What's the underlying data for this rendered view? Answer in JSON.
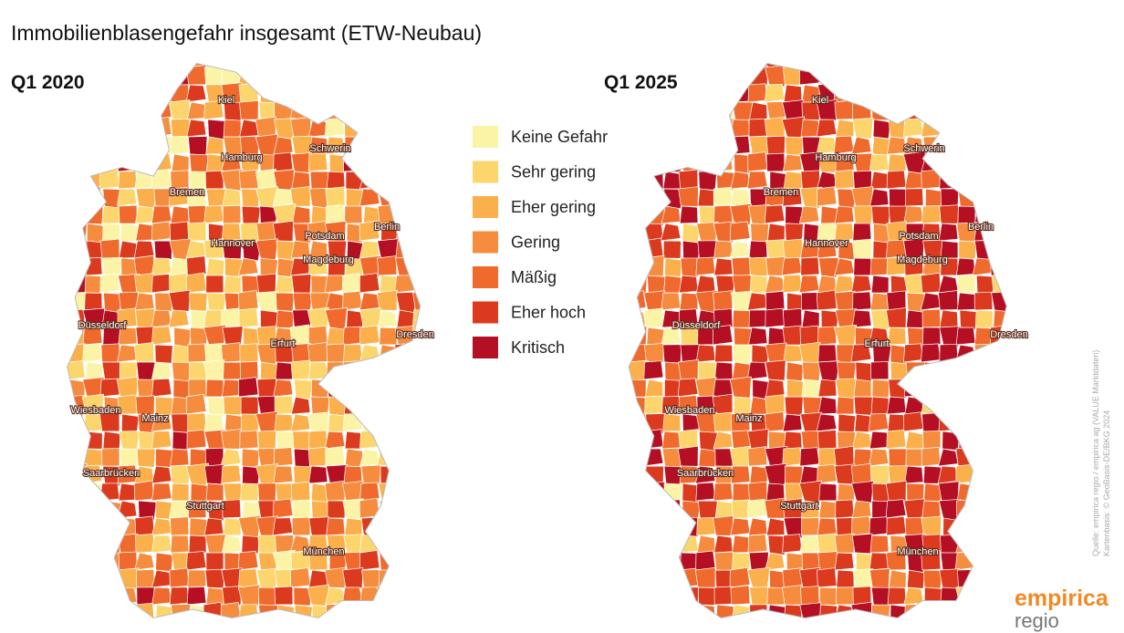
{
  "title": "Immobilienblasengefahr insgesamt (ETW-Neubau)",
  "maps": [
    {
      "label": "Q1 2020"
    },
    {
      "label": "Q1 2025"
    }
  ],
  "cities": [
    "Kiel",
    "Hamburg",
    "Schwerin",
    "Bremen",
    "Berlin",
    "Hannover",
    "Potsdam",
    "Magdeburg",
    "Düsseldorf",
    "Erfurt",
    "Dresden",
    "Wiesbaden",
    "Mainz",
    "Saarbrücken",
    "Stuttgart",
    "München"
  ],
  "legend": [
    {
      "label": "Keine Gefahr",
      "color": "#fbf4a6"
    },
    {
      "label": "Sehr gering",
      "color": "#fcd56d"
    },
    {
      "label": "Eher gering",
      "color": "#fbb04b"
    },
    {
      "label": "Gering",
      "color": "#f68d3e"
    },
    {
      "label": "Mäßig",
      "color": "#ef6a2c"
    },
    {
      "label": "Eher hoch",
      "color": "#dc3a1e"
    },
    {
      "label": "Kritisch",
      "color": "#b50f24"
    }
  ],
  "source": "Quelle: empirica regio / empirica ag (VALUE Marktdaten)",
  "source2": "Kartenbasis: © GeoBasis-DE/BKG 2024",
  "logo": {
    "line1": "empirica",
    "line2": "regio"
  }
}
